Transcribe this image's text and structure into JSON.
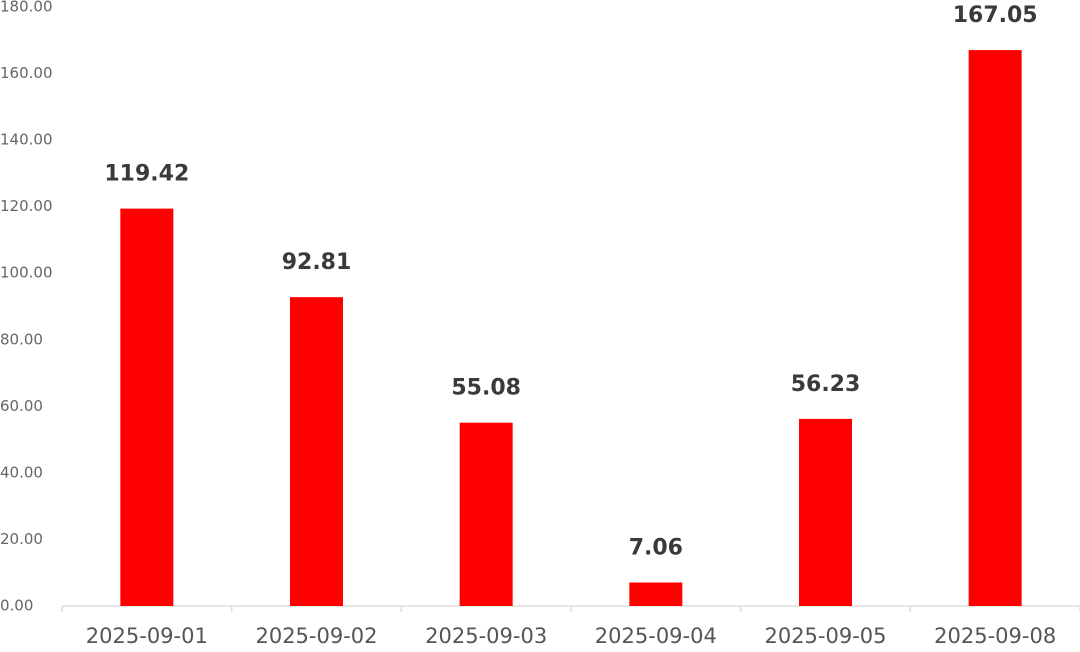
{
  "chart_data": {
    "type": "bar",
    "categories": [
      "2025-09-01",
      "2025-09-02",
      "2025-09-03",
      "2025-09-04",
      "2025-09-05",
      "2025-09-08"
    ],
    "values": [
      119.42,
      92.81,
      55.08,
      7.06,
      56.23,
      167.05
    ],
    "color": "#ff0000",
    "ylim": [
      0,
      180
    ],
    "yticks": [
      {
        "value": 0,
        "label": "0.00"
      },
      {
        "value": 20,
        "label": "20.00"
      },
      {
        "value": 40,
        "label": "40.00"
      },
      {
        "value": 60,
        "label": "60.00"
      },
      {
        "value": 80,
        "label": "80.00"
      },
      {
        "value": 100,
        "label": "100.00"
      },
      {
        "value": 120,
        "label": "120.00"
      },
      {
        "value": 140,
        "label": "140.00"
      },
      {
        "value": 160,
        "label": "160.00"
      },
      {
        "value": 180,
        "label": "180.00"
      }
    ],
    "grid": false
  }
}
